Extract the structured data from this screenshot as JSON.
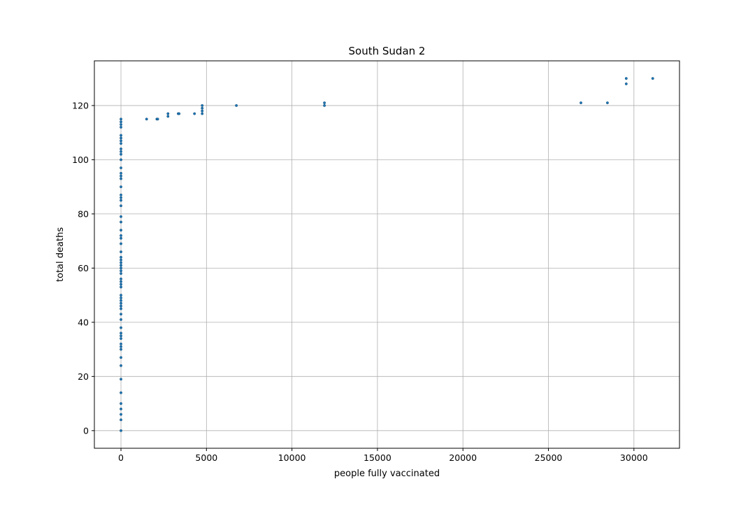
{
  "chart_data": {
    "type": "scatter",
    "title": "South Sudan 2",
    "xlabel": "people fully vaccinated",
    "ylabel": "total deaths",
    "xlim": [
      -1555,
      32665
    ],
    "ylim": [
      -6.5,
      136.5
    ],
    "xticks": [
      0,
      5000,
      10000,
      15000,
      20000,
      25000,
      30000
    ],
    "yticks": [
      0,
      20,
      40,
      60,
      80,
      100,
      120
    ],
    "grid": true,
    "legend": "none",
    "marker_color": "#1f77b4",
    "series": [
      {
        "points": [
          [
            0,
            0
          ],
          [
            0,
            4
          ],
          [
            0,
            6
          ],
          [
            0,
            8
          ],
          [
            0,
            10
          ],
          [
            0,
            14
          ],
          [
            0,
            19
          ],
          [
            0,
            24
          ],
          [
            0,
            27
          ],
          [
            0,
            30
          ],
          [
            0,
            31
          ],
          [
            0,
            32
          ],
          [
            0,
            34
          ],
          [
            0,
            35
          ],
          [
            0,
            36
          ],
          [
            0,
            38
          ],
          [
            0,
            41
          ],
          [
            0,
            43
          ],
          [
            0,
            45
          ],
          [
            0,
            46
          ],
          [
            0,
            47
          ],
          [
            0,
            48
          ],
          [
            0,
            49
          ],
          [
            0,
            50
          ],
          [
            0,
            53
          ],
          [
            0,
            54
          ],
          [
            0,
            55
          ],
          [
            0,
            56
          ],
          [
            0,
            58
          ],
          [
            0,
            59
          ],
          [
            0,
            60
          ],
          [
            0,
            61
          ],
          [
            0,
            62
          ],
          [
            0,
            63
          ],
          [
            0,
            64
          ],
          [
            0,
            66
          ],
          [
            0,
            69
          ],
          [
            0,
            71
          ],
          [
            0,
            72
          ],
          [
            0,
            74
          ],
          [
            0,
            77
          ],
          [
            0,
            79
          ],
          [
            0,
            83
          ],
          [
            0,
            85
          ],
          [
            0,
            86
          ],
          [
            0,
            87
          ],
          [
            0,
            90
          ],
          [
            0,
            93
          ],
          [
            0,
            94
          ],
          [
            0,
            95
          ],
          [
            0,
            97
          ],
          [
            0,
            100
          ],
          [
            0,
            102
          ],
          [
            0,
            103
          ],
          [
            0,
            104
          ],
          [
            0,
            106
          ],
          [
            0,
            107
          ],
          [
            0,
            108
          ],
          [
            0,
            109
          ],
          [
            0,
            112
          ],
          [
            0,
            113
          ],
          [
            0,
            114
          ],
          [
            0,
            115
          ],
          [
            1500,
            115
          ],
          [
            2100,
            115
          ],
          [
            2150,
            115
          ],
          [
            2750,
            116
          ],
          [
            2750,
            117
          ],
          [
            3350,
            117
          ],
          [
            3400,
            117
          ],
          [
            4300,
            117
          ],
          [
            4750,
            117
          ],
          [
            4750,
            118
          ],
          [
            4750,
            119
          ],
          [
            4750,
            120
          ],
          [
            6750,
            120
          ],
          [
            11900,
            120
          ],
          [
            11900,
            121
          ],
          [
            26900,
            121
          ],
          [
            28450,
            121
          ],
          [
            29550,
            128
          ],
          [
            29550,
            130
          ],
          [
            31100,
            130
          ]
        ]
      }
    ]
  }
}
